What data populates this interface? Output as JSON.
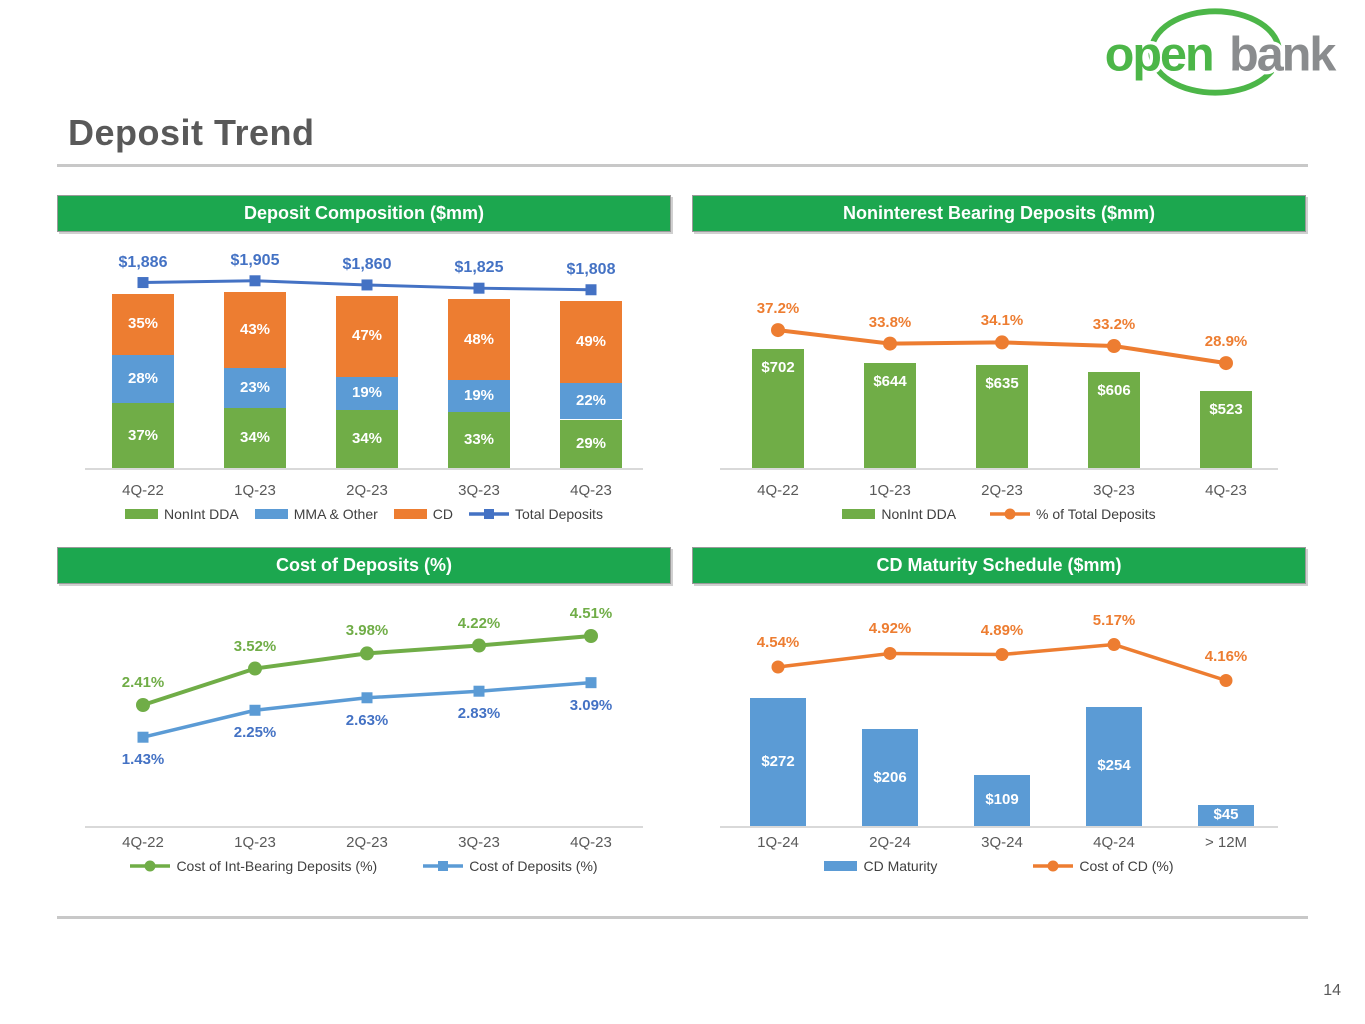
{
  "page": {
    "title": "Deposit Trend",
    "page_number": "14"
  },
  "logo": {
    "word1": "open",
    "word2": "bank",
    "green": "#4CB648",
    "gray": "#8A8C8E"
  },
  "colors": {
    "header_green": "#1CA74F",
    "bar_green": "#70AD47",
    "bar_blue": "#5B9BD5",
    "bar_orange": "#ED7D31",
    "line_dark_blue": "#4472C4",
    "axis_gray": "#D9D9D9",
    "text_gray": "#595959"
  },
  "chart_data": [
    {
      "id": "deposit_composition",
      "type": "bar",
      "combo": "stacked-bar+line",
      "title": "Deposit Composition ($mm)",
      "categories": [
        "4Q-22",
        "1Q-23",
        "2Q-23",
        "3Q-23",
        "4Q-23"
      ],
      "series": [
        {
          "name": "NonInt DDA",
          "type": "bar",
          "color": "#70AD47",
          "values": [
            37,
            34,
            34,
            33,
            29
          ],
          "labels": [
            "37%",
            "34%",
            "34%",
            "33%",
            "29%"
          ]
        },
        {
          "name": "MMA & Other",
          "type": "bar",
          "color": "#5B9BD5",
          "values": [
            28,
            23,
            19,
            19,
            22
          ],
          "labels": [
            "28%",
            "23%",
            "19%",
            "19%",
            "22%"
          ]
        },
        {
          "name": "CD",
          "type": "bar",
          "color": "#ED7D31",
          "values": [
            35,
            43,
            47,
            48,
            49
          ],
          "labels": [
            "35%",
            "43%",
            "47%",
            "48%",
            "49%"
          ]
        },
        {
          "name": "Total Deposits",
          "type": "line",
          "color": "#4472C4",
          "marker": "square",
          "label_color": "#4472C4",
          "values": [
            1886,
            1905,
            1860,
            1825,
            1808
          ],
          "labels": [
            "$1,886",
            "$1,905",
            "$1,860",
            "$1,825",
            "$1,808"
          ]
        }
      ],
      "legend_position": "bottom",
      "axis": {
        "x_visible": true,
        "y_visible": false,
        "unit": "percent of total deposits"
      }
    },
    {
      "id": "noninterest_bearing_deposits",
      "type": "bar",
      "combo": "bar+line",
      "title": "Noninterest Bearing Deposits ($mm)",
      "categories": [
        "4Q-22",
        "1Q-23",
        "2Q-23",
        "3Q-23",
        "4Q-23"
      ],
      "series": [
        {
          "name": "NonInt DDA",
          "type": "bar",
          "color": "#70AD47",
          "values": [
            702,
            644,
            635,
            606,
            523
          ],
          "labels": [
            "$702",
            "$644",
            "$635",
            "$606",
            "$523"
          ]
        },
        {
          "name": "% of Total Deposits",
          "type": "line",
          "color": "#ED7D31",
          "marker": "circle",
          "label_color": "#ED7D31",
          "values": [
            37.2,
            33.8,
            34.1,
            33.2,
            28.9
          ],
          "labels": [
            "37.2%",
            "33.8%",
            "34.1%",
            "33.2%",
            "28.9%"
          ]
        }
      ],
      "legend_position": "bottom",
      "axis": {
        "x_visible": true,
        "y_visible": false
      }
    },
    {
      "id": "cost_of_deposits",
      "type": "line",
      "title": "Cost of Deposits (%)",
      "categories": [
        "4Q-22",
        "1Q-23",
        "2Q-23",
        "3Q-23",
        "4Q-23"
      ],
      "series": [
        {
          "name": "Cost of Int-Bearing Deposits (%)",
          "type": "line",
          "color": "#70AD47",
          "marker": "circle",
          "label_color": "#70AD47",
          "values": [
            2.41,
            3.52,
            3.98,
            4.22,
            4.51
          ],
          "labels": [
            "2.41%",
            "3.52%",
            "3.98%",
            "4.22%",
            "4.51%"
          ]
        },
        {
          "name": "Cost of Deposits (%)",
          "type": "line",
          "color": "#5B9BD5",
          "marker": "square",
          "label_color": "#4472C4",
          "values": [
            1.43,
            2.25,
            2.63,
            2.83,
            3.09
          ],
          "labels": [
            "1.43%",
            "2.25%",
            "2.63%",
            "2.83%",
            "3.09%"
          ]
        }
      ],
      "legend_position": "bottom",
      "axis": {
        "x_visible": true,
        "y_visible": false
      }
    },
    {
      "id": "cd_maturity_schedule",
      "type": "bar",
      "combo": "bar+line",
      "title": "CD Maturity Schedule ($mm)",
      "categories": [
        "1Q-24",
        "2Q-24",
        "3Q-24",
        "4Q-24",
        "> 12M"
      ],
      "series": [
        {
          "name": "CD Maturity",
          "type": "bar",
          "color": "#5B9BD5",
          "values": [
            272,
            206,
            109,
            254,
            45
          ],
          "labels": [
            "$272",
            "$206",
            "$109",
            "$254",
            "$45"
          ]
        },
        {
          "name": "Cost of CD (%)",
          "type": "line",
          "color": "#ED7D31",
          "marker": "circle",
          "label_color": "#ED7D31",
          "values": [
            4.54,
            4.92,
            4.89,
            5.17,
            4.16
          ],
          "labels": [
            "4.54%",
            "4.92%",
            "4.89%",
            "5.17%",
            "4.16%"
          ]
        }
      ],
      "legend_position": "bottom",
      "axis": {
        "x_visible": true,
        "y_visible": false
      }
    }
  ]
}
